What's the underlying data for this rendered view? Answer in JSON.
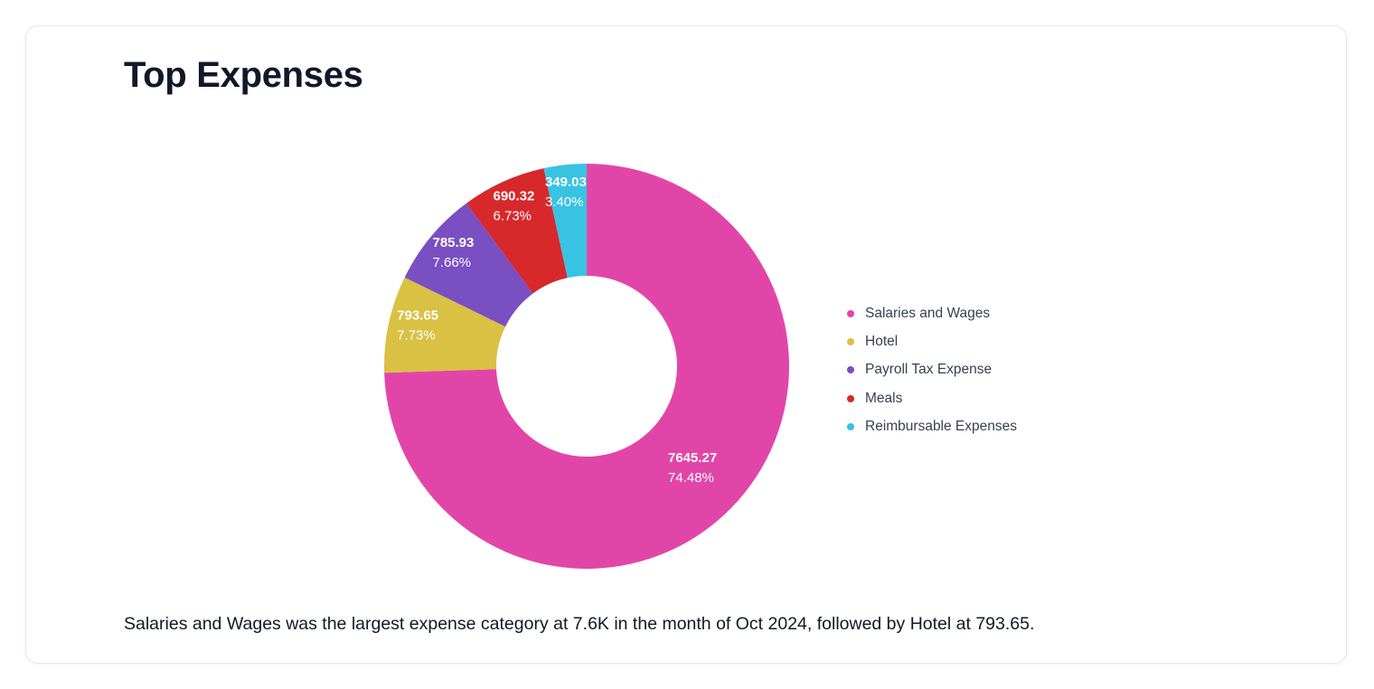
{
  "card": {
    "title": "Top Expenses",
    "summary": "Salaries and Wages was the largest expense category at 7.6K in the month of Oct 2024, followed by Hotel at 793.65."
  },
  "chart_data": {
    "type": "pie",
    "variant": "donut",
    "title": "Top Expenses",
    "legend_position": "right",
    "slices": [
      {
        "label": "Salaries and Wages",
        "value": 7645.27,
        "value_text": "7645.27",
        "percent_text": "74.48%",
        "color": "#e245a8"
      },
      {
        "label": "Hotel",
        "value": 793.65,
        "value_text": "793.65",
        "percent_text": "7.73%",
        "color": "#d9c143"
      },
      {
        "label": "Payroll Tax Expense",
        "value": 785.93,
        "value_text": "785.93",
        "percent_text": "7.66%",
        "color": "#7a4fc2"
      },
      {
        "label": "Meals",
        "value": 690.32,
        "value_text": "690.32",
        "percent_text": "6.73%",
        "color": "#d7282c"
      },
      {
        "label": "Reimbursable Expenses",
        "value": 349.03,
        "value_text": "349.03",
        "percent_text": "3.40%",
        "color": "#38c3e3"
      }
    ]
  }
}
